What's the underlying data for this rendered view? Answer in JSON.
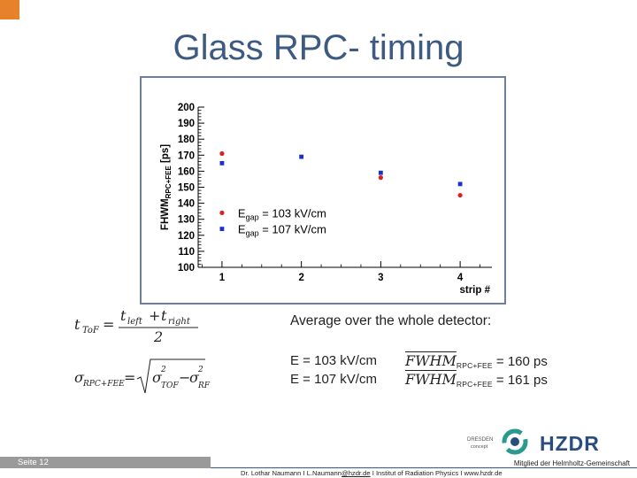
{
  "slide": {
    "title": "Glass RPC- timing",
    "footer": {
      "page": "Seite 12",
      "member": "Mitglied der Helmholtz-Gemeinschaft",
      "credit_prefix": "Dr. Lothar Naumann  I  L.Naumann",
      "credit_email": "@hzdr.de",
      "credit_suffix": "  I  Institut of Radiation Physics  I  www.hzdr.de"
    },
    "logos": {
      "dresden_line1": "DRESDEN",
      "dresden_line2": "concept",
      "hzdr": "HZDR"
    },
    "formulas": {
      "tof": "t_ToF = (t_left + t_right) / 2",
      "sigma": "σ_RPC+FEE = √(σ²_TOF − σ²_RF)"
    },
    "average": {
      "heading": "Average over the whole detector:",
      "rows": [
        {
          "e_label": "E = 103 kV/cm",
          "fwhm": "FWHM",
          "sub": "RPC+FEE",
          "value": " = 160 ps"
        },
        {
          "e_label": "E = 107 kV/cm",
          "fwhm": "FWHM",
          "sub": "RPC+FEE",
          "value": " = 161 ps"
        }
      ]
    }
  },
  "chart_data": {
    "type": "scatter",
    "xlabel": "strip #",
    "ylabel": "FHWM_RPC+FEE [ps]",
    "xlim": [
      0.7,
      4.4
    ],
    "ylim": [
      100,
      200
    ],
    "xticks": [
      1,
      2,
      3,
      4
    ],
    "yticks": [
      100,
      110,
      120,
      130,
      140,
      150,
      160,
      170,
      180,
      190,
      200
    ],
    "legend_placement": "bottom-left",
    "series": [
      {
        "name": "E_gap = 103 kV/cm",
        "marker": "circle",
        "color": "#dd2020",
        "x": [
          1,
          3,
          4
        ],
        "y": [
          171,
          156,
          145
        ]
      },
      {
        "name": "E_gap = 107 kV/cm",
        "marker": "square",
        "color": "#1a2fcf",
        "x": [
          1,
          2,
          3,
          4
        ],
        "y": [
          165,
          169,
          159,
          152
        ]
      }
    ]
  }
}
